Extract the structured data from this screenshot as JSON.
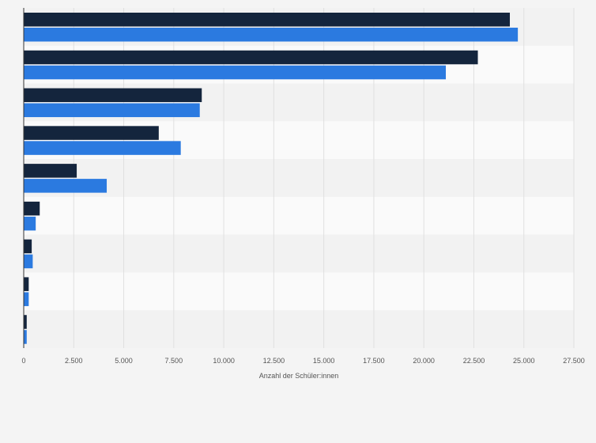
{
  "chart_data": {
    "type": "bar",
    "orientation": "horizontal",
    "title": "",
    "xlabel": "Anzahl der Schüler:innen",
    "ylabel": "",
    "xlim": [
      0,
      27500
    ],
    "x_ticks": [
      0,
      2500,
      5000,
      7500,
      10000,
      12500,
      15000,
      17500,
      20000,
      22500,
      25000,
      27500
    ],
    "x_tick_labels": [
      "0",
      "2.500",
      "5.000",
      "7.500",
      "10.000",
      "12.500",
      "15.000",
      "17.500",
      "20.000",
      "22.500",
      "25.000",
      "27.500"
    ],
    "categories": [
      "",
      "",
      "",
      "",
      "",
      "",
      "",
      "",
      ""
    ],
    "grid": true,
    "legend": "none",
    "series": [
      {
        "color": "#14253d",
        "values": [
          24300,
          22700,
          8900,
          6750,
          2650,
          800,
          400,
          250,
          150
        ]
      },
      {
        "color": "#2b7ae0",
        "values": [
          24700,
          21100,
          8800,
          7850,
          4150,
          600,
          450,
          250,
          150
        ]
      }
    ]
  }
}
